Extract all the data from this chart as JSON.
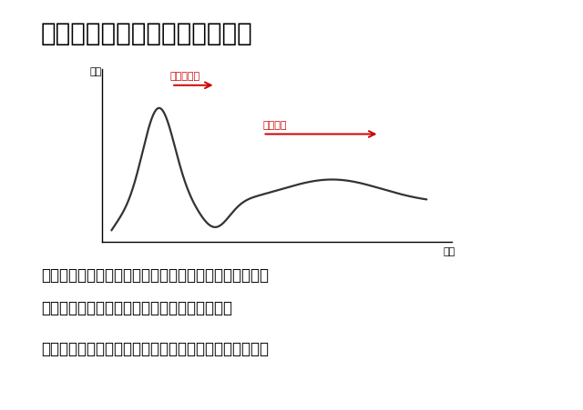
{
  "title": "コトブキ園の鶏糞発酵ステージ",
  "title_fontsize": 20,
  "ylabel": "温度",
  "xlabel": "時間",
  "annotation1_text": "尿酸の揮発",
  "annotation2_text": "礀化作用",
  "body_text_line1": "始めに尿酸の揮発の反応から始まり、一旦反応が止まる",
  "body_text_line2": "冷めてから礀化作用が長時間かけて行われる。",
  "bold_text": "鶏糞堆肥からアンモニア臭がなくなれば完熟状態となる",
  "arrow_color": "#cc0000",
  "curve_color": "#333333",
  "background_color": "#ffffff",
  "text_color": "#000000",
  "body_fontsize": 12,
  "bold_fontsize": 12,
  "label_fontsize": 8,
  "annotation_fontsize": 8
}
